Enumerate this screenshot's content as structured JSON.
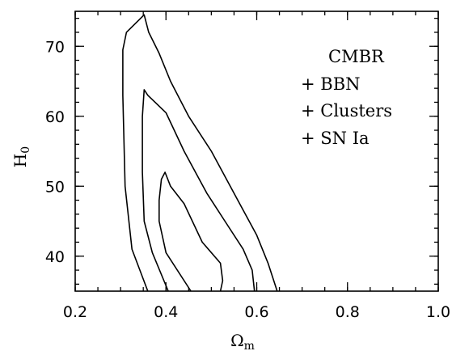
{
  "chart_data": {
    "type": "line",
    "xlabel": "Ω",
    "xlabel_sub": "m",
    "ylabel": "H",
    "ylabel_sub": "0",
    "xlim": [
      0.2,
      1.0
    ],
    "ylim": [
      35,
      75
    ],
    "x_ticks": [
      0.2,
      0.4,
      0.6,
      0.8,
      1.0
    ],
    "x_tick_labels": [
      "0.2",
      "0.4",
      "0.6",
      "0.8",
      "1.0"
    ],
    "y_ticks": [
      40,
      50,
      60,
      70
    ],
    "y_tick_labels": [
      "40",
      "50",
      "60",
      "70"
    ],
    "annotation_lines": [
      "CMBR",
      "+ BBN",
      "+ Clusters",
      "+ SN Ia"
    ],
    "grid": false,
    "series": [
      {
        "points": [
          [
            0.36,
            35
          ],
          [
            0.325,
            41
          ],
          [
            0.31,
            50
          ],
          [
            0.305,
            63
          ],
          [
            0.305,
            69.5
          ],
          [
            0.313,
            72
          ],
          [
            0.352,
            74.5
          ],
          [
            0.362,
            72
          ],
          [
            0.385,
            69
          ],
          [
            0.41,
            65
          ],
          [
            0.45,
            60
          ],
          [
            0.5,
            55
          ],
          [
            0.55,
            49
          ],
          [
            0.6,
            43
          ],
          [
            0.625,
            39
          ],
          [
            0.645,
            35
          ]
        ]
      },
      {
        "points": [
          [
            0.405,
            35
          ],
          [
            0.37,
            40.5
          ],
          [
            0.352,
            45
          ],
          [
            0.348,
            52
          ],
          [
            0.348,
            60
          ],
          [
            0.352,
            63.8
          ],
          [
            0.36,
            63
          ],
          [
            0.4,
            60.5
          ],
          [
            0.44,
            55
          ],
          [
            0.49,
            49
          ],
          [
            0.53,
            45
          ],
          [
            0.57,
            41
          ],
          [
            0.59,
            38
          ],
          [
            0.595,
            35
          ]
        ]
      },
      {
        "points": [
          [
            0.455,
            35
          ],
          [
            0.4,
            40.5
          ],
          [
            0.385,
            45
          ],
          [
            0.385,
            48
          ],
          [
            0.39,
            51
          ],
          [
            0.398,
            52
          ],
          [
            0.41,
            50
          ],
          [
            0.44,
            47.5
          ],
          [
            0.48,
            42
          ],
          [
            0.52,
            39
          ],
          [
            0.525,
            36.5
          ],
          [
            0.52,
            35
          ]
        ]
      }
    ]
  }
}
